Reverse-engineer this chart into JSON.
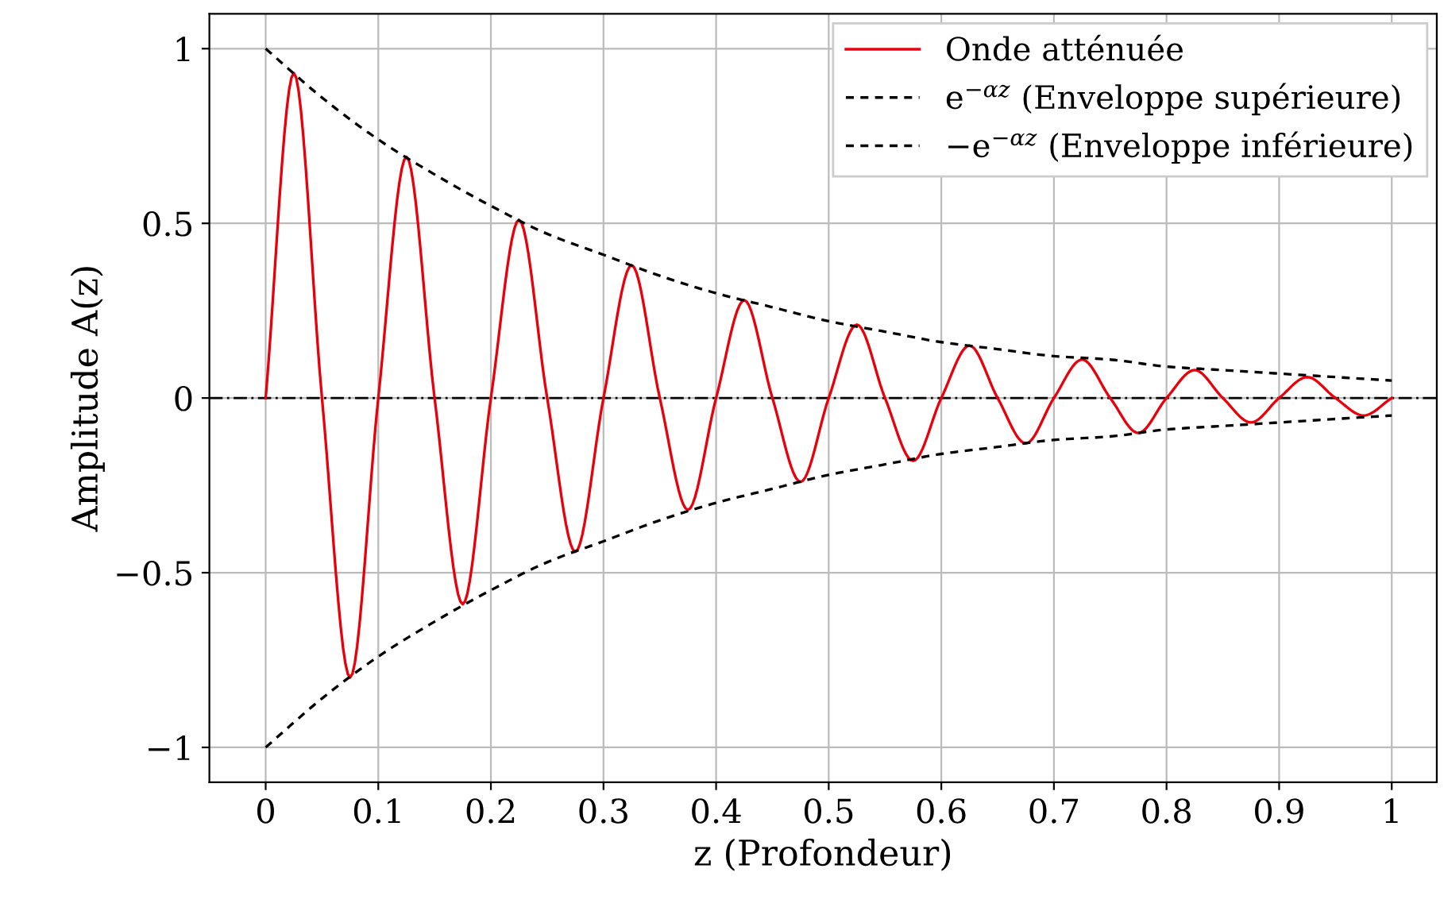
{
  "chart_data": {
    "type": "line",
    "xlabel": "z (Profondeur)",
    "ylabel": "Amplitude A(z)",
    "xlim": [
      -0.05,
      1.04
    ],
    "ylim": [
      -1.1,
      1.1
    ],
    "xticks": [
      0,
      0.1,
      0.2,
      0.3,
      0.4,
      0.5,
      0.6,
      0.7,
      0.8,
      0.9,
      1
    ],
    "yticks": [
      {
        "value": -1,
        "label": "−1"
      },
      {
        "value": -0.5,
        "label": "−0.5"
      },
      0,
      0.5,
      1
    ],
    "grid": true,
    "legend": "top right",
    "marker": "none",
    "ref_lines": [
      {
        "axis": "y",
        "value": 0,
        "color": "#000000",
        "line_style": "dashed"
      }
    ],
    "series": [
      {
        "name": "Onde atténuée",
        "color": "#e8000b",
        "line_style": "solid",
        "x": [
          0,
          0.025,
          0.05,
          0.075,
          0.1,
          0.125,
          0.15,
          0.175,
          0.2,
          0.225,
          0.25,
          0.275,
          0.3,
          0.325,
          0.35,
          0.375,
          0.4,
          0.425,
          0.45,
          0.475,
          0.5,
          0.525,
          0.55,
          0.575,
          0.6,
          0.625,
          0.65,
          0.675,
          0.7,
          0.725,
          0.75,
          0.775,
          0.8,
          0.825,
          0.85,
          0.875,
          0.9,
          0.925,
          0.95,
          0.975,
          1
        ],
        "values": [
          0,
          0.93,
          0,
          -0.8,
          0,
          0.69,
          0,
          -0.59,
          0,
          0.51,
          0,
          -0.44,
          0,
          0.38,
          0,
          -0.32,
          0,
          0.28,
          0,
          -0.24,
          0,
          0.21,
          0,
          -0.18,
          0,
          0.15,
          0,
          -0.13,
          0,
          0.11,
          0,
          -0.1,
          0,
          0.08,
          0,
          -0.07,
          0,
          0.06,
          0,
          -0.05,
          0
        ]
      },
      {
        "name": "e$^{−αz}$ (Enveloppe supérieure)",
        "color": "#000000",
        "line_style": "dashed",
        "x": [
          0,
          0.05,
          0.1,
          0.15,
          0.2,
          0.25,
          0.3,
          0.35,
          0.4,
          0.45,
          0.5,
          0.55,
          0.6,
          0.65,
          0.7,
          0.75,
          0.8,
          0.85,
          0.9,
          0.95,
          1
        ],
        "values": [
          1,
          0.86,
          0.74,
          0.64,
          0.55,
          0.47,
          0.41,
          0.35,
          0.3,
          0.26,
          0.22,
          0.19,
          0.16,
          0.14,
          0.12,
          0.11,
          0.09,
          0.08,
          0.07,
          0.06,
          0.05
        ]
      },
      {
        "name": "−e$^{−αz}$ (Enveloppe inférieure)",
        "color": "#000000",
        "line_style": "dashed",
        "x": [
          0,
          0.05,
          0.1,
          0.15,
          0.2,
          0.25,
          0.3,
          0.35,
          0.4,
          0.45,
          0.5,
          0.55,
          0.6,
          0.65,
          0.7,
          0.75,
          0.8,
          0.85,
          0.9,
          0.95,
          1
        ],
        "values": [
          -1,
          -0.86,
          -0.74,
          -0.64,
          -0.55,
          -0.47,
          -0.41,
          -0.35,
          -0.3,
          -0.26,
          -0.22,
          -0.19,
          -0.16,
          -0.14,
          -0.12,
          -0.11,
          -0.09,
          -0.08,
          -0.07,
          -0.06,
          -0.05
        ]
      }
    ]
  }
}
